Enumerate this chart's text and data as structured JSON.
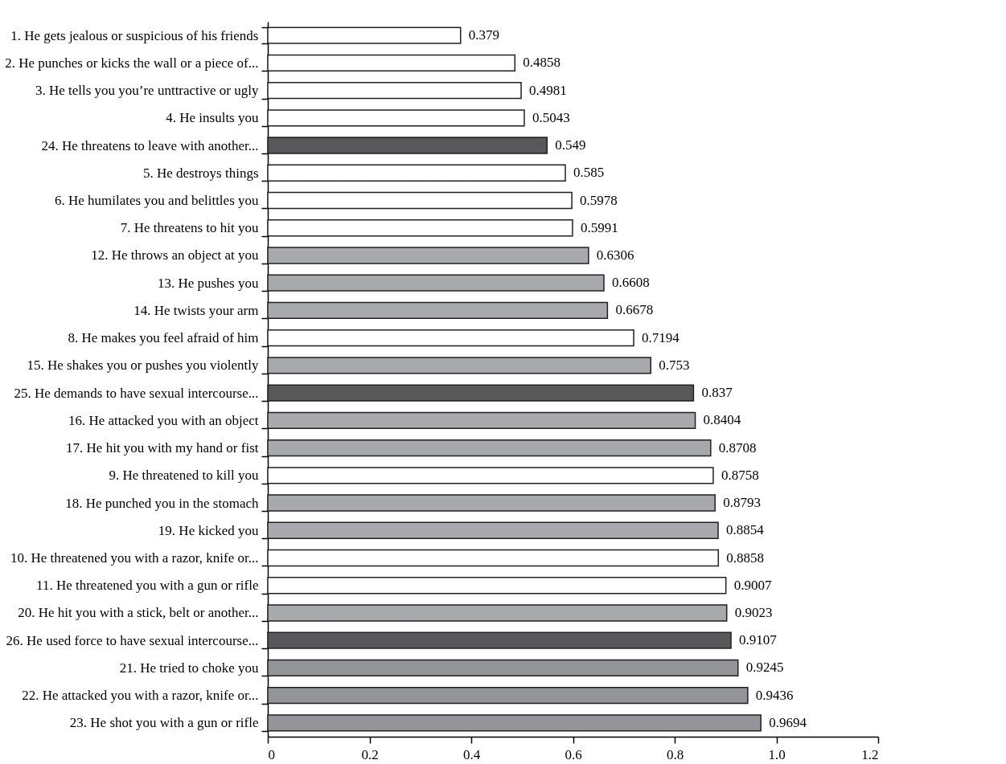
{
  "chart_data": {
    "type": "bar",
    "orientation": "horizontal",
    "categories": [
      "1. He gets jealous or suspicious of his friends",
      "2. He punches or kicks the wall or a piece of...",
      "3. He tells you you’re unttractive or ugly",
      "4. He insults you",
      "24. He threatens to leave with another...",
      "5. He destroys things",
      "6. He humilates you and belittles you",
      "7. He threatens to hit you",
      "12. He throws an object at you",
      "13. He pushes you",
      "14. He twists your arm",
      "8. He makes you feel afraid of him",
      "15. He shakes you or pushes you violently",
      "25. He demands to have sexual intercourse...",
      "16. He attacked you with an object",
      "17. He hit you with my hand or fist",
      "9. He threatened to kill you",
      "18. He punched you in the stomach",
      "19. He kicked you",
      "10. He threatened you with a razor, knife or...",
      "11. He threatened you with a gun or rifle",
      "20. He hit you with a stick, belt or another...",
      "26. He used force to have sexual intercourse...",
      "21. He tried to choke you",
      "22. He attacked you with a razor, knife or...",
      "23. He shot you with a gun or rifle"
    ],
    "values": [
      0.379,
      0.4858,
      0.4981,
      0.5043,
      0.549,
      0.585,
      0.5978,
      0.5991,
      0.6306,
      0.6608,
      0.6678,
      0.7194,
      0.753,
      0.837,
      0.8404,
      0.8708,
      0.8758,
      0.8793,
      0.8854,
      0.8858,
      0.9007,
      0.9023,
      0.9107,
      0.9245,
      0.9436,
      0.9694
    ],
    "colors": [
      "#ffffff",
      "#ffffff",
      "#ffffff",
      "#ffffff",
      "#58585a",
      "#ffffff",
      "#ffffff",
      "#ffffff",
      "#a7a9ac",
      "#a7a9ac",
      "#a7a9ac",
      "#ffffff",
      "#a7a9ac",
      "#58585a",
      "#a7a9ac",
      "#a7a9ac",
      "#ffffff",
      "#a7a9ac",
      "#a7a9ac",
      "#ffffff",
      "#ffffff",
      "#a7a9ac",
      "#58585a",
      "#939598",
      "#939598",
      "#939598"
    ],
    "xlim": [
      0,
      1.2
    ],
    "xticks": [
      0,
      0.2,
      0.4,
      0.6,
      0.8,
      {
        "value": 1,
        "label": "1.0"
      },
      1.2
    ],
    "data_labels": true
  }
}
